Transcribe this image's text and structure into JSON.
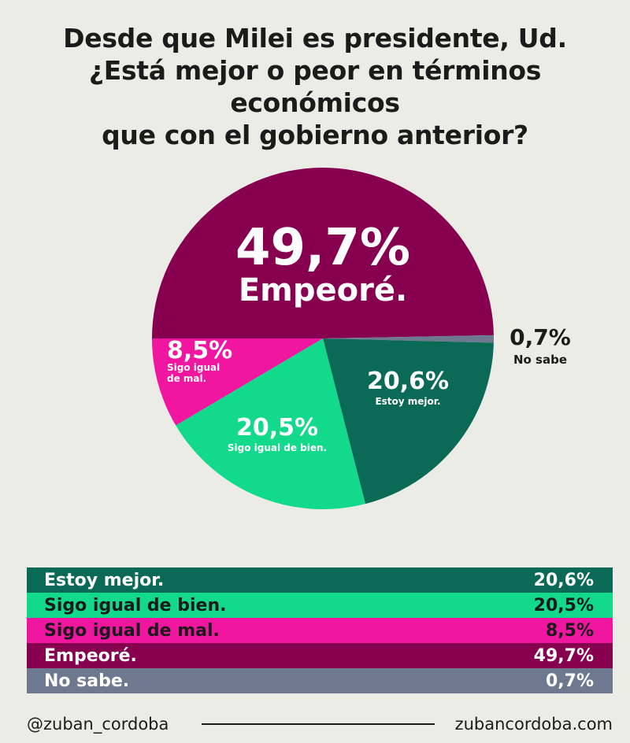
{
  "title_lines": [
    "Desde que Milei es presidente, Ud.",
    "¿Está mejor o peor en términos económicos",
    "que con el gobierno anterior?"
  ],
  "colors": {
    "dark_green": "#0b6a55",
    "light_green": "#13d98c",
    "pink": "#f016a0",
    "purple": "#86004f",
    "gray": "#6e7990",
    "background": "#ecece6"
  },
  "chart_data": {
    "type": "pie",
    "slices": [
      {
        "label": "Empeoré.",
        "value": 49.7,
        "value_label": "49,7%",
        "color": "#86004f"
      },
      {
        "label": "No sabe",
        "value": 0.7,
        "value_label": "0,7%",
        "color": "#6e7990"
      },
      {
        "label": "Estoy mejor.",
        "value": 20.6,
        "value_label": "20,6%",
        "color": "#0b6a55"
      },
      {
        "label": "Sigo igual de bien.",
        "value": 20.5,
        "value_label": "20,5%",
        "color": "#13d98c"
      },
      {
        "label": "Sigo igual de mal.",
        "value": 8.5,
        "value_label": "8,5%",
        "color": "#f016a0"
      }
    ]
  },
  "table": [
    {
      "label": "Estoy mejor.",
      "value": "20,6%",
      "color": "#0b6a55",
      "text_color": "#ffffff"
    },
    {
      "label": "Sigo igual de bien.",
      "value": "20,5%",
      "color": "#13d98c",
      "text_color": "#1b1b1b"
    },
    {
      "label": "Sigo igual de mal.",
      "value": "8,5%",
      "color": "#f016a0",
      "text_color": "#1b1b1b"
    },
    {
      "label": "Empeoré.",
      "value": "49,7%",
      "color": "#86004f",
      "text_color": "#ffffff"
    },
    {
      "label": "No sabe.",
      "value": "0,7%",
      "color": "#6e7990",
      "text_color": "#ffffff"
    }
  ],
  "footer": {
    "handle": "@zuban_cordoba",
    "website": "zubancordoba.com"
  }
}
